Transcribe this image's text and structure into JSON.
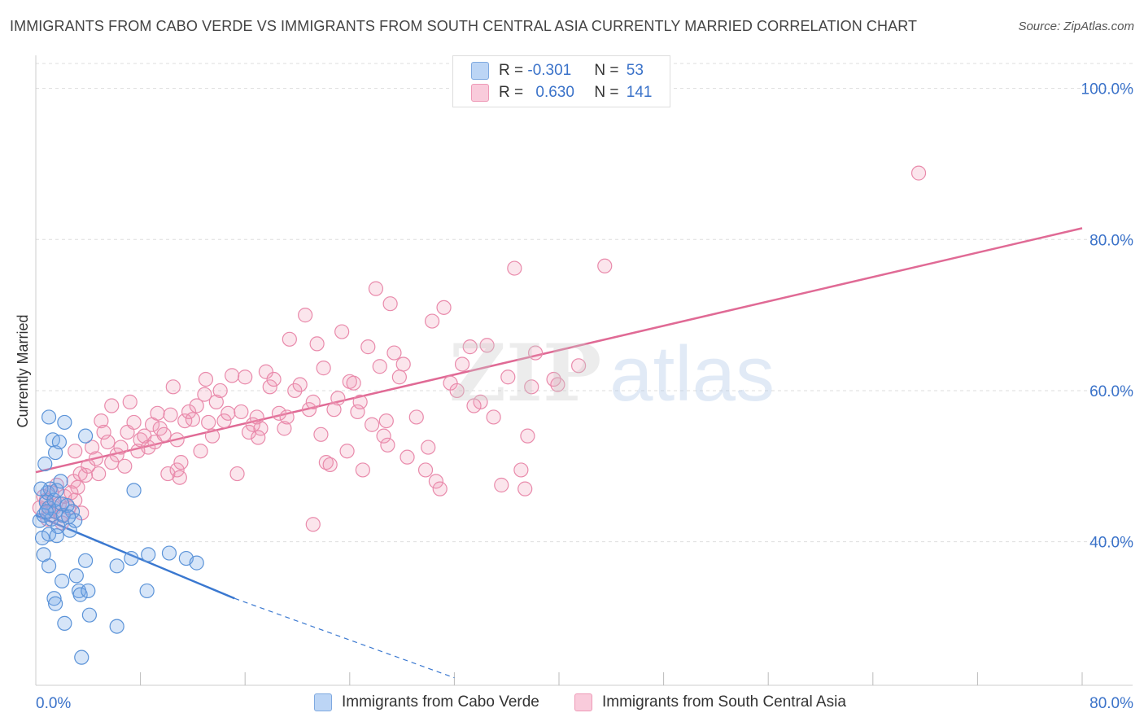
{
  "title": "IMMIGRANTS FROM CABO VERDE VS IMMIGRANTS FROM SOUTH CENTRAL ASIA CURRENTLY MARRIED CORRELATION CHART",
  "source": "Source: ZipAtlas.com",
  "watermark": {
    "zip": "ZIP",
    "atlas": "atlas"
  },
  "legend": {
    "rows": [
      {
        "r_label": "R = ",
        "r_value": "-0.301",
        "n_label": "N = ",
        "n_value": "53",
        "color": "#a8c8f0"
      },
      {
        "r_label": "R = ",
        "r_value": "0.630",
        "n_label": "N = ",
        "n_value": "141",
        "color": "#f5b8cc"
      }
    ]
  },
  "colors": {
    "blue_fill": "rgba(120,168,232,0.30)",
    "blue_stroke": "#5b93d8",
    "blue_line": "#3a78d0",
    "pink_fill": "rgba(240,150,180,0.25)",
    "pink_stroke": "#e98aab",
    "pink_line": "#e06a95",
    "tick_label": "#3a72c9",
    "grid": "#dddddd"
  },
  "chart_data": {
    "type": "scatter",
    "title": "IMMIGRANTS FROM CABO VERDE VS IMMIGRANTS FROM SOUTH CENTRAL ASIA CURRENTLY MARRIED CORRELATION CHART",
    "xlabel": "",
    "ylabel": "Currently Married",
    "xlim": [
      0,
      80
    ],
    "ylim": [
      21,
      103.3
    ],
    "x_tick_labels": {
      "left": "0.0%",
      "right": "80.0%"
    },
    "y_ticks": [
      40,
      60,
      80,
      100
    ],
    "y_tick_labels": [
      "40.0%",
      "60.0%",
      "80.0%",
      "100.0%"
    ],
    "x_minor_ticks": [
      8,
      16,
      24,
      32,
      40,
      48,
      56,
      64,
      72,
      80
    ],
    "legend_position": "top-center",
    "series": [
      {
        "name": "Immigrants from Cabo Verde",
        "color": "#a8c8f0",
        "R": -0.301,
        "N": 53,
        "trend": {
          "x0": 0,
          "y0": 43.5,
          "x1": 15.2,
          "y1": 32.5,
          "dash_to_x": 32,
          "dash_to_y": 22
        },
        "points": [
          [
            0.3,
            42.8
          ],
          [
            0.5,
            40.5
          ],
          [
            0.6,
            43.5
          ],
          [
            0.8,
            45.2
          ],
          [
            0.9,
            46.5
          ],
          [
            1.0,
            44.5
          ],
          [
            1.1,
            47.0
          ],
          [
            1.2,
            43.0
          ],
          [
            1.4,
            45.5
          ],
          [
            1.5,
            44.0
          ],
          [
            1.6,
            46.8
          ],
          [
            1.7,
            42.0
          ],
          [
            1.9,
            48.0
          ],
          [
            2.0,
            45.0
          ],
          [
            2.1,
            43.5
          ],
          [
            2.4,
            44.8
          ],
          [
            2.6,
            41.5
          ],
          [
            2.8,
            44.0
          ],
          [
            3.0,
            42.8
          ],
          [
            0.7,
            50.3
          ],
          [
            1.0,
            56.5
          ],
          [
            1.3,
            53.5
          ],
          [
            1.5,
            51.8
          ],
          [
            1.8,
            53.2
          ],
          [
            2.2,
            55.8
          ],
          [
            3.8,
            54.0
          ],
          [
            7.5,
            46.8
          ],
          [
            0.6,
            38.3
          ],
          [
            1.0,
            36.8
          ],
          [
            1.4,
            32.5
          ],
          [
            1.5,
            31.8
          ],
          [
            2.0,
            34.8
          ],
          [
            2.2,
            29.2
          ],
          [
            3.1,
            35.5
          ],
          [
            3.3,
            33.5
          ],
          [
            3.4,
            33.0
          ],
          [
            3.8,
            37.5
          ],
          [
            4.0,
            33.5
          ],
          [
            4.1,
            30.3
          ],
          [
            6.2,
            36.8
          ],
          [
            6.2,
            28.8
          ],
          [
            7.3,
            37.8
          ],
          [
            8.5,
            33.5
          ],
          [
            8.6,
            38.3
          ],
          [
            10.2,
            38.5
          ],
          [
            11.5,
            37.8
          ],
          [
            12.3,
            37.2
          ],
          [
            3.5,
            24.7
          ],
          [
            0.4,
            47.0
          ],
          [
            1.0,
            41.0
          ],
          [
            1.6,
            40.8
          ],
          [
            0.8,
            44.0
          ],
          [
            2.5,
            43.3
          ]
        ]
      },
      {
        "name": "Immigrants from South Central Asia",
        "color": "#f5b8cc",
        "R": 0.63,
        "N": 141,
        "trend": {
          "x0": 0,
          "y0": 49.2,
          "x1": 80,
          "y1": 81.5
        },
        "points": [
          [
            0.3,
            44.5
          ],
          [
            0.6,
            46.0
          ],
          [
            0.8,
            45.5
          ],
          [
            0.9,
            43.0
          ],
          [
            1.0,
            44.0
          ],
          [
            1.2,
            46.5
          ],
          [
            1.4,
            44.5
          ],
          [
            1.6,
            47.5
          ],
          [
            1.8,
            45.0
          ],
          [
            2.0,
            43.5
          ],
          [
            2.2,
            46.0
          ],
          [
            2.5,
            44.5
          ],
          [
            2.7,
            46.5
          ],
          [
            2.9,
            48.0
          ],
          [
            3.0,
            45.5
          ],
          [
            3.2,
            47.2
          ],
          [
            3.4,
            49.0
          ],
          [
            3.5,
            43.8
          ],
          [
            3.8,
            48.8
          ],
          [
            4.0,
            50.0
          ],
          [
            4.3,
            52.5
          ],
          [
            4.6,
            51.0
          ],
          [
            4.8,
            49.0
          ],
          [
            5.0,
            56.0
          ],
          [
            5.2,
            54.5
          ],
          [
            5.5,
            53.2
          ],
          [
            5.8,
            50.5
          ],
          [
            6.2,
            51.5
          ],
          [
            6.5,
            52.5
          ],
          [
            6.8,
            50.0
          ],
          [
            7.0,
            54.5
          ],
          [
            7.2,
            58.5
          ],
          [
            7.5,
            55.8
          ],
          [
            7.8,
            52.0
          ],
          [
            8.0,
            53.5
          ],
          [
            8.3,
            54.0
          ],
          [
            8.6,
            52.5
          ],
          [
            8.9,
            55.5
          ],
          [
            9.1,
            53.2
          ],
          [
            9.3,
            57.0
          ],
          [
            9.5,
            55.0
          ],
          [
            9.8,
            54.2
          ],
          [
            10.1,
            49.0
          ],
          [
            10.3,
            56.8
          ],
          [
            10.5,
            60.5
          ],
          [
            10.8,
            49.5
          ],
          [
            11.1,
            50.5
          ],
          [
            11.4,
            56.0
          ],
          [
            11.7,
            57.2
          ],
          [
            12.0,
            56.2
          ],
          [
            12.3,
            58.0
          ],
          [
            12.6,
            52.0
          ],
          [
            12.9,
            59.5
          ],
          [
            13.2,
            55.8
          ],
          [
            13.5,
            54.0
          ],
          [
            13.8,
            58.5
          ],
          [
            14.1,
            60.0
          ],
          [
            14.4,
            56.0
          ],
          [
            14.7,
            57.0
          ],
          [
            15.0,
            62.0
          ],
          [
            15.4,
            49.0
          ],
          [
            15.7,
            57.2
          ],
          [
            16.0,
            61.8
          ],
          [
            16.3,
            54.5
          ],
          [
            16.6,
            55.5
          ],
          [
            16.9,
            56.5
          ],
          [
            17.2,
            55.0
          ],
          [
            17.6,
            62.5
          ],
          [
            17.9,
            60.5
          ],
          [
            18.2,
            61.5
          ],
          [
            18.6,
            57.0
          ],
          [
            19.0,
            55.0
          ],
          [
            19.4,
            66.8
          ],
          [
            19.8,
            60.0
          ],
          [
            20.2,
            60.8
          ],
          [
            20.6,
            70.0
          ],
          [
            20.9,
            57.5
          ],
          [
            21.2,
            58.5
          ],
          [
            21.5,
            66.2
          ],
          [
            21.8,
            54.2
          ],
          [
            22.2,
            50.5
          ],
          [
            22.5,
            50.2
          ],
          [
            22.8,
            57.5
          ],
          [
            23.1,
            59.0
          ],
          [
            23.4,
            67.8
          ],
          [
            23.8,
            52.0
          ],
          [
            24.0,
            61.2
          ],
          [
            24.3,
            61.0
          ],
          [
            24.6,
            57.2
          ],
          [
            25.0,
            49.5
          ],
          [
            25.4,
            65.8
          ],
          [
            25.7,
            55.5
          ],
          [
            26.0,
            73.5
          ],
          [
            26.3,
            63.2
          ],
          [
            26.6,
            54.0
          ],
          [
            26.9,
            52.8
          ],
          [
            27.1,
            71.5
          ],
          [
            27.4,
            65.0
          ],
          [
            27.8,
            61.8
          ],
          [
            28.1,
            63.5
          ],
          [
            28.4,
            51.2
          ],
          [
            29.1,
            56.5
          ],
          [
            29.8,
            49.5
          ],
          [
            30.3,
            69.2
          ],
          [
            30.6,
            48.0
          ],
          [
            30.9,
            47.0
          ],
          [
            31.2,
            71.0
          ],
          [
            31.7,
            61.0
          ],
          [
            32.2,
            60.0
          ],
          [
            32.6,
            63.5
          ],
          [
            33.2,
            65.8
          ],
          [
            34.0,
            58.5
          ],
          [
            34.5,
            66.0
          ],
          [
            35.0,
            56.5
          ],
          [
            35.6,
            47.5
          ],
          [
            36.1,
            61.8
          ],
          [
            36.6,
            76.2
          ],
          [
            37.1,
            49.5
          ],
          [
            37.4,
            47.0
          ],
          [
            37.6,
            54.0
          ],
          [
            37.9,
            60.5
          ],
          [
            38.2,
            65.0
          ],
          [
            39.6,
            61.5
          ],
          [
            39.9,
            60.8
          ],
          [
            41.5,
            63.3
          ],
          [
            43.5,
            76.5
          ],
          [
            67.5,
            88.8
          ],
          [
            5.8,
            58.0
          ],
          [
            10.8,
            53.5
          ],
          [
            13.0,
            61.5
          ],
          [
            17.0,
            53.8
          ],
          [
            19.2,
            56.5
          ],
          [
            22.0,
            63.0
          ],
          [
            24.8,
            58.5
          ],
          [
            26.8,
            56.0
          ],
          [
            30.0,
            52.5
          ],
          [
            33.5,
            58.0
          ],
          [
            3.0,
            52.0
          ],
          [
            2.0,
            42.5
          ],
          [
            11.0,
            48.5
          ],
          [
            21.2,
            42.3
          ]
        ]
      }
    ]
  }
}
